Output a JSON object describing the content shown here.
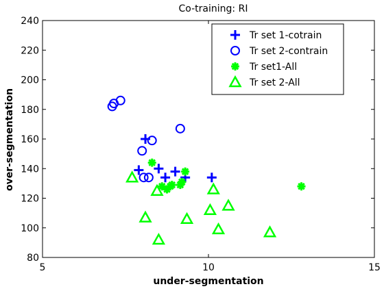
{
  "chart_data": {
    "type": "scatter",
    "title": "Co-training: RI",
    "xlabel": "under-segmentation",
    "ylabel": "over-segmentation",
    "xlim": [
      5,
      15
    ],
    "ylim": [
      80,
      240
    ],
    "x_ticks": [
      5,
      10,
      15
    ],
    "y_ticks": [
      80,
      100,
      120,
      140,
      160,
      180,
      200,
      220,
      240
    ],
    "x_tick_labels": [
      "5",
      "10",
      "15"
    ],
    "y_tick_labels": [
      "80",
      "100",
      "120",
      "140",
      "160",
      "180",
      "200",
      "220",
      "240"
    ],
    "grid": false,
    "legend_position": "top-right",
    "series": [
      {
        "name": "Tr set 1-cotrain",
        "marker": "plus",
        "color": "#0000ff",
        "points": [
          [
            7.9,
            139
          ],
          [
            8.1,
            160
          ],
          [
            8.5,
            140
          ],
          [
            8.7,
            134
          ],
          [
            9.0,
            138
          ],
          [
            9.3,
            134
          ],
          [
            10.1,
            134
          ]
        ]
      },
      {
        "name": "Tr set 2-contrain",
        "marker": "circle",
        "color": "#0000ff",
        "points": [
          [
            7.1,
            182
          ],
          [
            7.15,
            184
          ],
          [
            7.35,
            186
          ],
          [
            8.0,
            152
          ],
          [
            8.05,
            134
          ],
          [
            8.2,
            134
          ],
          [
            8.3,
            159
          ],
          [
            9.15,
            167
          ]
        ]
      },
      {
        "name": "Tr set1-All",
        "marker": "asterisk",
        "color": "#00ff00",
        "points": [
          [
            8.3,
            144
          ],
          [
            8.6,
            128
          ],
          [
            8.75,
            126
          ],
          [
            8.85,
            128
          ],
          [
            8.9,
            129
          ],
          [
            9.15,
            129
          ],
          [
            9.2,
            131
          ],
          [
            9.3,
            138
          ],
          [
            12.8,
            128
          ]
        ]
      },
      {
        "name": "Tr set 2-All",
        "marker": "triangle",
        "color": "#00ff00",
        "points": [
          [
            7.7,
            134
          ],
          [
            8.1,
            107
          ],
          [
            8.45,
            125
          ],
          [
            8.5,
            92
          ],
          [
            9.35,
            106
          ],
          [
            10.05,
            112
          ],
          [
            10.15,
            126
          ],
          [
            10.3,
            99
          ],
          [
            10.6,
            115
          ],
          [
            11.85,
            97
          ]
        ]
      }
    ]
  }
}
